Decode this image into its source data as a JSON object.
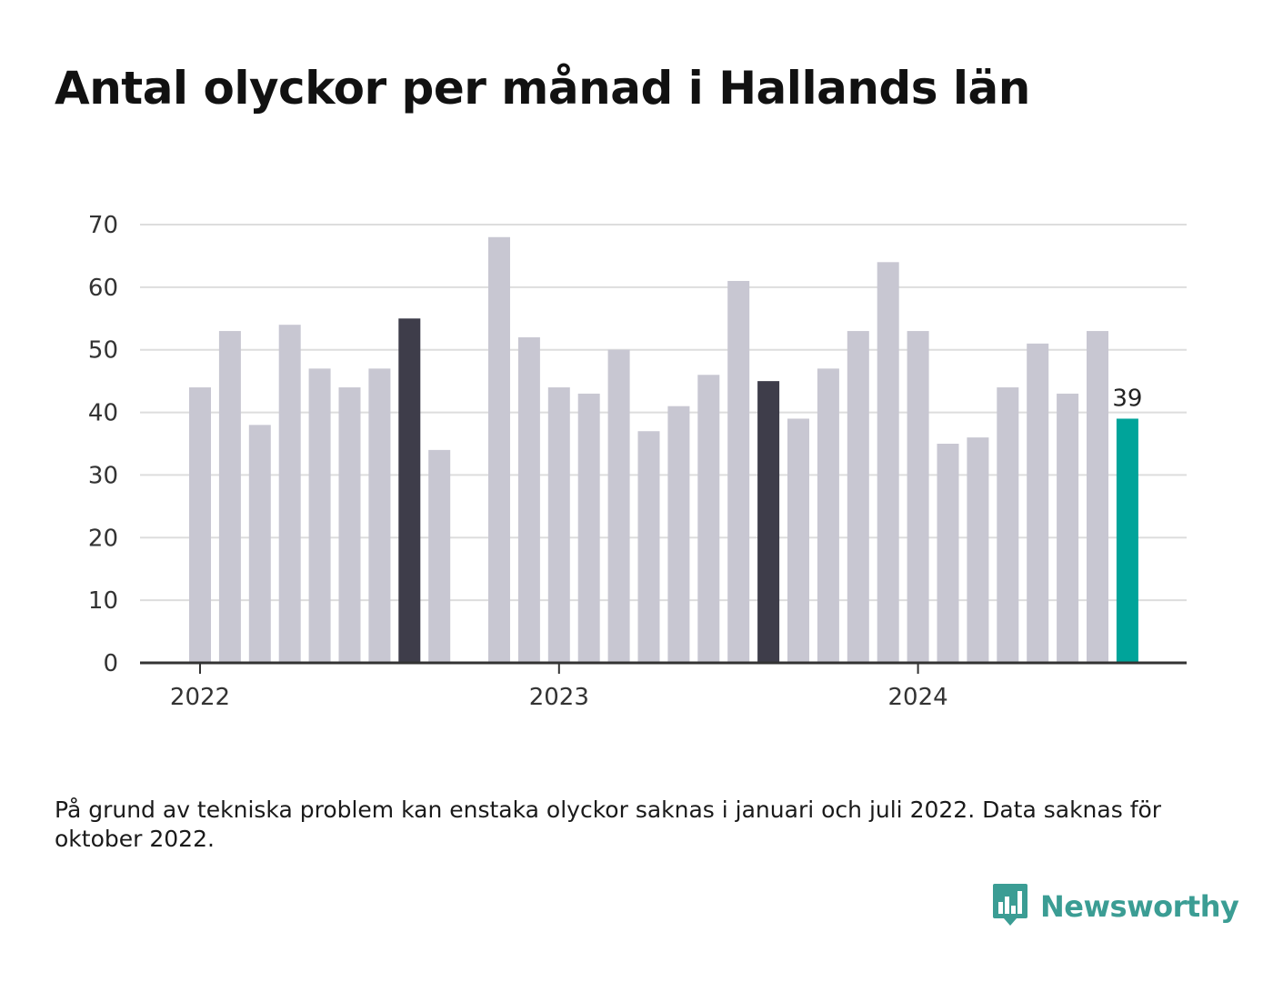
{
  "title": "Antal olyckor per månad i Hallands län",
  "note": "På grund av tekniska problem kan enstaka olyckor saknas i januari och juli 2022. Data saknas för oktober 2022.",
  "brand": {
    "name": "Newsworthy",
    "icon": "newsworthy-logo-icon"
  },
  "colors": {
    "default_bar": "#c8c7d2",
    "highlight_bar": "#3e3d4a",
    "latest_bar": "#00a49a",
    "grid": "#dddddd",
    "axis": "#333333",
    "brand": "#3b9d94"
  },
  "chart_data": {
    "type": "bar",
    "title": "Antal olyckor per månad i Hallands län",
    "ylim": [
      0,
      70
    ],
    "yticks": [
      0,
      10,
      20,
      30,
      40,
      50,
      60,
      70
    ],
    "xtick_labels": [
      {
        "label": "2022",
        "month_index": 0
      },
      {
        "label": "2023",
        "month_index": 12
      },
      {
        "label": "2024",
        "month_index": 24
      }
    ],
    "grid": true,
    "categories": [
      "2022-01",
      "2022-02",
      "2022-03",
      "2022-04",
      "2022-05",
      "2022-06",
      "2022-07",
      "2022-08",
      "2022-09",
      "2022-10",
      "2022-11",
      "2022-12",
      "2023-01",
      "2023-02",
      "2023-03",
      "2023-04",
      "2023-05",
      "2023-06",
      "2023-07",
      "2023-08",
      "2023-09",
      "2023-10",
      "2023-11",
      "2023-12",
      "2024-01",
      "2024-02",
      "2024-03",
      "2024-04",
      "2024-05",
      "2024-06",
      "2024-07",
      "2024-08"
    ],
    "values": [
      44,
      53,
      38,
      54,
      47,
      44,
      47,
      55,
      34,
      null,
      68,
      52,
      44,
      43,
      50,
      37,
      41,
      46,
      61,
      45,
      39,
      47,
      53,
      64,
      53,
      35,
      36,
      44,
      51,
      43,
      53,
      39
    ],
    "highlighted": [
      "2022-08",
      "2023-08"
    ],
    "latest": "2024-08",
    "value_labels": [
      {
        "category": "2024-08",
        "text": "39"
      }
    ]
  }
}
